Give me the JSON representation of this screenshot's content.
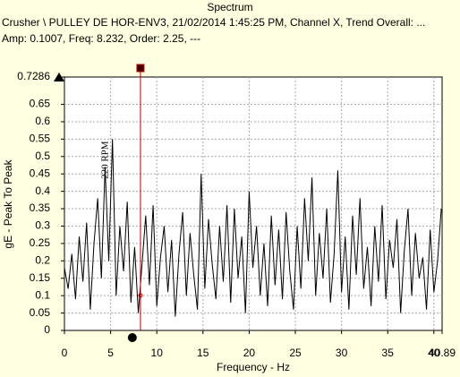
{
  "chart_data": {
    "type": "line",
    "title": "Spectrum",
    "subtitle": "Crusher \\ PULLEY DE HOR-ENV3, 21/02/2014 1:45:25 PM, Channel X, Trend Overall: ...",
    "cursor_text": "Amp: 0.1007, Freq: 8.232, Order: 2.25, ---",
    "xlabel": "Frequency - Hz",
    "ylabel": "gE - Peak To Peak",
    "annotation": "220 RPM",
    "annotation_x": 3.667,
    "cursor": {
      "x": 8.232,
      "y": 0.1007
    },
    "grid": true,
    "xlim": [
      0,
      40.89
    ],
    "ylim": [
      0,
      0.7286
    ],
    "xticks": [
      0,
      5,
      10,
      15,
      20,
      25,
      30,
      35,
      40,
      40.89
    ],
    "yticks": [
      0,
      0.05,
      0.1,
      0.15,
      0.2,
      0.25,
      0.3,
      0.35,
      0.4,
      0.45,
      0.5,
      0.55,
      0.6,
      0.65,
      0.7286
    ],
    "x": [
      0,
      0.4,
      0.8,
      1.2,
      1.6,
      2.0,
      2.4,
      2.8,
      3.2,
      3.6,
      4.0,
      4.4,
      4.8,
      5.2,
      5.6,
      6.0,
      6.4,
      6.8,
      7.2,
      7.6,
      8.0,
      8.4,
      8.8,
      9.2,
      9.6,
      10.0,
      10.4,
      10.8,
      11.2,
      11.6,
      12.0,
      12.4,
      12.8,
      13.2,
      13.6,
      14.0,
      14.4,
      14.8,
      15.2,
      15.6,
      16.0,
      16.4,
      16.8,
      17.2,
      17.6,
      18.0,
      18.4,
      18.8,
      19.2,
      19.6,
      20.0,
      20.4,
      20.8,
      21.2,
      21.6,
      22.0,
      22.4,
      22.8,
      23.2,
      23.6,
      24.0,
      24.4,
      24.8,
      25.2,
      25.6,
      26.0,
      26.4,
      26.8,
      27.2,
      27.6,
      28.0,
      28.4,
      28.8,
      29.2,
      29.6,
      30.0,
      30.4,
      30.8,
      31.2,
      31.6,
      32.0,
      32.4,
      32.8,
      33.2,
      33.6,
      34.0,
      34.4,
      34.8,
      35.2,
      35.6,
      36.0,
      36.4,
      36.8,
      37.2,
      37.6,
      38.0,
      38.4,
      38.8,
      39.2,
      39.6,
      40.0,
      40.4,
      40.8
    ],
    "series": [
      {
        "color": "#000000",
        "values": [
          0.18,
          0.12,
          0.22,
          0.09,
          0.27,
          0.14,
          0.31,
          0.06,
          0.25,
          0.38,
          0.15,
          0.47,
          0.2,
          0.55,
          0.1,
          0.3,
          0.17,
          0.37,
          0.08,
          0.24,
          0.05,
          0.19,
          0.33,
          0.13,
          0.36,
          0.07,
          0.21,
          0.3,
          0.11,
          0.26,
          0.04,
          0.22,
          0.34,
          0.1,
          0.28,
          0.16,
          0.06,
          0.45,
          0.12,
          0.32,
          0.19,
          0.09,
          0.3,
          0.14,
          0.36,
          0.08,
          0.35,
          0.15,
          0.27,
          0.05,
          0.4,
          0.18,
          0.3,
          0.1,
          0.25,
          0.07,
          0.33,
          0.13,
          0.29,
          0.09,
          0.34,
          0.17,
          0.06,
          0.3,
          0.12,
          0.38,
          0.2,
          0.44,
          0.1,
          0.28,
          0.15,
          0.35,
          0.08,
          0.22,
          0.46,
          0.11,
          0.27,
          0.06,
          0.33,
          0.16,
          0.38,
          0.12,
          0.24,
          0.07,
          0.3,
          0.14,
          0.36,
          0.09,
          0.26,
          0.18,
          0.32,
          0.05,
          0.23,
          0.35,
          0.1,
          0.28,
          0.15,
          0.21,
          0.06,
          0.29,
          0.11,
          0.2,
          0.35
        ]
      }
    ]
  }
}
